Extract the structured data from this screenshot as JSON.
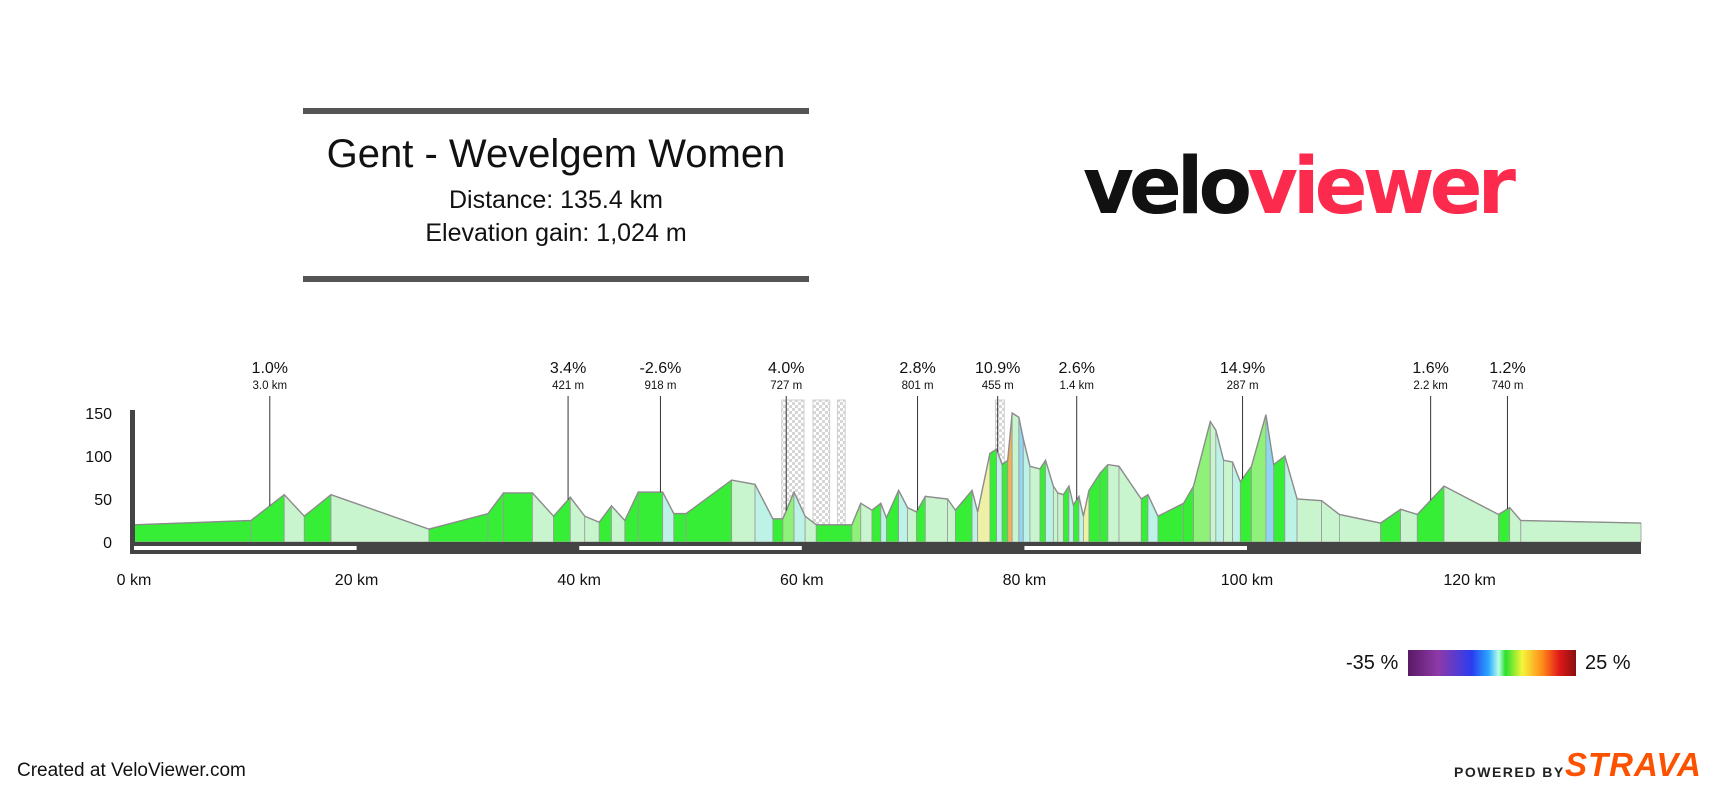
{
  "header": {
    "title": "Gent - Wevelgem Women",
    "distance": "Distance: 135.4 km",
    "elevation_gain": "Elevation gain: 1,024 m"
  },
  "brand": {
    "logo_part1": "velo",
    "logo_part2": "viewer",
    "logo_color": "#fc2a4d"
  },
  "legend": {
    "min_label": "-35 %",
    "max_label": "25 %"
  },
  "footer": {
    "created": "Created at VeloViewer.com",
    "powered": "POWERED BY",
    "strava": "STRAVA",
    "strava_color": "#fc5200"
  },
  "chart_data": {
    "type": "area",
    "xlabel": "",
    "ylabel": "",
    "xlim": [
      0,
      135.4
    ],
    "ylim": [
      0,
      150
    ],
    "x_ticks": [
      0,
      20,
      40,
      60,
      80,
      100,
      120
    ],
    "x_tick_labels": [
      "0 km",
      "20 km",
      "40 km",
      "60 km",
      "80 km",
      "100 km",
      "120 km"
    ],
    "y_ticks": [
      0,
      50,
      100,
      150
    ],
    "y_tick_labels": [
      "0",
      "50",
      "100",
      "150"
    ],
    "profile": [
      [
        0,
        20
      ],
      [
        10.5,
        25
      ],
      [
        13.5,
        55
      ],
      [
        15.3,
        30
      ],
      [
        17.7,
        55
      ],
      [
        26.5,
        15
      ],
      [
        31.8,
        33
      ],
      [
        33.2,
        57
      ],
      [
        35.8,
        57
      ],
      [
        37.7,
        30
      ],
      [
        39.2,
        52
      ],
      [
        40.5,
        30
      ],
      [
        41.8,
        23
      ],
      [
        42.9,
        42
      ],
      [
        44.1,
        25
      ],
      [
        45.3,
        58
      ],
      [
        47.5,
        58
      ],
      [
        48.5,
        33
      ],
      [
        49.6,
        33
      ],
      [
        53.7,
        72
      ],
      [
        55.8,
        67
      ],
      [
        57.4,
        27
      ],
      [
        58.3,
        27
      ],
      [
        59.3,
        58
      ],
      [
        60.3,
        30
      ],
      [
        61.3,
        20
      ],
      [
        64.5,
        20
      ],
      [
        65.3,
        45
      ],
      [
        66.3,
        37
      ],
      [
        67.1,
        45
      ],
      [
        67.6,
        28
      ],
      [
        68.7,
        60
      ],
      [
        69.5,
        40
      ],
      [
        70.3,
        35
      ],
      [
        71.1,
        53
      ],
      [
        73.1,
        50
      ],
      [
        73.8,
        37
      ],
      [
        75.3,
        60
      ],
      [
        75.8,
        35
      ],
      [
        76.9,
        103
      ],
      [
        77.5,
        108
      ],
      [
        78.0,
        90
      ],
      [
        78.5,
        95
      ],
      [
        78.9,
        150
      ],
      [
        79.5,
        145
      ],
      [
        79.9,
        120
      ],
      [
        80.5,
        88
      ],
      [
        81.4,
        85
      ],
      [
        81.9,
        95
      ],
      [
        82.6,
        65
      ],
      [
        83.0,
        57
      ],
      [
        83.5,
        55
      ],
      [
        84.0,
        65
      ],
      [
        84.4,
        43
      ],
      [
        84.9,
        53
      ],
      [
        85.3,
        30
      ],
      [
        85.8,
        60
      ],
      [
        86.8,
        80
      ],
      [
        87.5,
        90
      ],
      [
        88.5,
        88
      ],
      [
        90.5,
        50
      ],
      [
        91.1,
        55
      ],
      [
        92.0,
        30
      ],
      [
        94.3,
        45
      ],
      [
        95.2,
        65
      ],
      [
        96.7,
        140
      ],
      [
        97.2,
        130
      ],
      [
        97.9,
        95
      ],
      [
        98.7,
        93
      ],
      [
        99.4,
        70
      ],
      [
        100.4,
        88
      ],
      [
        101.7,
        148
      ],
      [
        102.4,
        90
      ],
      [
        103.4,
        100
      ],
      [
        104.5,
        50
      ],
      [
        106.7,
        48
      ],
      [
        108.3,
        32
      ],
      [
        112.0,
        22
      ],
      [
        113.8,
        38
      ],
      [
        115.3,
        32
      ],
      [
        117.7,
        65
      ],
      [
        122.6,
        32
      ],
      [
        123.6,
        40
      ],
      [
        124.6,
        25
      ],
      [
        135.4,
        22
      ]
    ],
    "climbs": [
      {
        "grade": "1.0%",
        "length": "3.0 km",
        "km": 12.2
      },
      {
        "grade": "3.4%",
        "length": "421 m",
        "km": 39.0
      },
      {
        "grade": "-2.6%",
        "length": "918 m",
        "km": 47.3
      },
      {
        "grade": "4.0%",
        "length": "727 m",
        "km": 58.6
      },
      {
        "grade": "2.8%",
        "length": "801 m",
        "km": 70.4
      },
      {
        "grade": "10.9%",
        "length": "455 m",
        "km": 77.6
      },
      {
        "grade": "2.6%",
        "length": "1.4 km",
        "km": 84.7
      },
      {
        "grade": "14.9%",
        "length": "287 m",
        "km": 99.6
      },
      {
        "grade": "1.6%",
        "length": "2.2 km",
        "km": 116.5
      },
      {
        "grade": "1.2%",
        "length": "740 m",
        "km": 123.4
      }
    ],
    "cobbled_sectors": [
      [
        58.2,
        60.2
      ],
      [
        61.0,
        62.5
      ],
      [
        63.2,
        63.9
      ],
      [
        77.4,
        78.2
      ]
    ],
    "color_scale": {
      "min": -35,
      "max": 25
    }
  }
}
